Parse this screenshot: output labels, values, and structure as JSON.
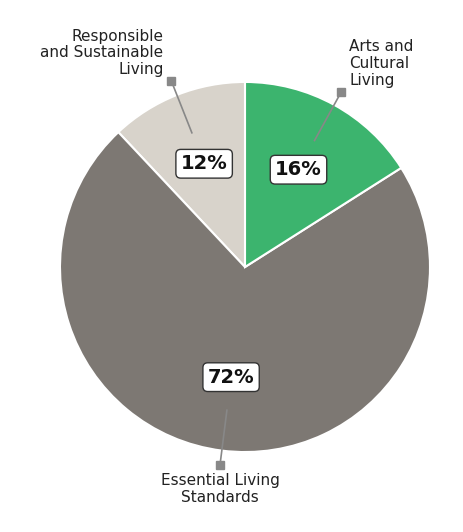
{
  "chart_data": {
    "type": "pie",
    "categories": [
      "Responsible\nand Sustainable\nLiving",
      "Essential Living\nStandards",
      "Arts and\nCultural\nLiving"
    ],
    "values": [
      12,
      72,
      16
    ],
    "value_labels": [
      "12%",
      "72%",
      "16%"
    ],
    "colors": [
      "#d8d3cb",
      "#7d7873",
      "#3cb46e"
    ],
    "data_labels": true
  }
}
